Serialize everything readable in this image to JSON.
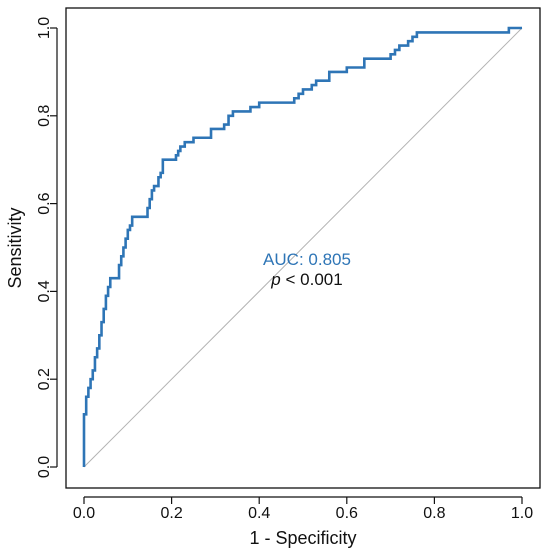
{
  "chart_data": {
    "type": "line",
    "xlabel": "1 - Specificity",
    "ylabel": "Sensitivity",
    "xlim": [
      0,
      1
    ],
    "ylim": [
      0,
      1
    ],
    "xticks": [
      "0.0",
      "0.2",
      "0.4",
      "0.6",
      "0.8",
      "1.0"
    ],
    "yticks": [
      "0.0",
      "0.2",
      "0.4",
      "0.6",
      "0.8",
      "1.0"
    ],
    "grid": false,
    "annotations": {
      "auc_text": "AUC: 0.805",
      "p_symbol": "p",
      "p_rest": " < 0.001"
    },
    "colors": {
      "roc": "#2e75b6",
      "reference": "#b3b3b3",
      "axis": "#111111"
    },
    "series": [
      {
        "x": [
          0,
          0,
          0.005,
          0.005,
          0.01,
          0.01,
          0.015,
          0.015,
          0.02,
          0.02,
          0.025,
          0.025,
          0.03,
          0.03,
          0.035,
          0.035,
          0.04,
          0.04,
          0.045,
          0.045,
          0.05,
          0.05,
          0.055,
          0.055,
          0.06,
          0.06,
          0.08,
          0.08,
          0.085,
          0.085,
          0.09,
          0.09,
          0.095,
          0.095,
          0.1,
          0.1,
          0.105,
          0.105,
          0.11,
          0.11,
          0.145,
          0.145,
          0.15,
          0.15,
          0.155,
          0.155,
          0.16,
          0.16,
          0.17,
          0.17,
          0.175,
          0.175,
          0.18,
          0.18,
          0.21,
          0.21,
          0.215,
          0.215,
          0.22,
          0.22,
          0.23,
          0.23,
          0.25,
          0.25,
          0.29,
          0.29,
          0.32,
          0.32,
          0.33,
          0.33,
          0.34,
          0.34,
          0.38,
          0.38,
          0.4,
          0.4,
          0.48,
          0.48,
          0.49,
          0.49,
          0.5,
          0.5,
          0.52,
          0.52,
          0.53,
          0.53,
          0.56,
          0.56,
          0.6,
          0.6,
          0.64,
          0.64,
          0.7,
          0.7,
          0.71,
          0.71,
          0.72,
          0.72,
          0.74,
          0.74,
          0.75,
          0.75,
          0.76,
          0.76,
          0.97,
          0.97,
          0.98,
          1.0
        ],
        "y": [
          0,
          0.12,
          0.12,
          0.16,
          0.16,
          0.18,
          0.18,
          0.2,
          0.2,
          0.22,
          0.22,
          0.25,
          0.25,
          0.27,
          0.27,
          0.3,
          0.3,
          0.33,
          0.33,
          0.36,
          0.36,
          0.39,
          0.39,
          0.41,
          0.41,
          0.43,
          0.43,
          0.46,
          0.46,
          0.48,
          0.48,
          0.5,
          0.5,
          0.52,
          0.52,
          0.54,
          0.54,
          0.55,
          0.55,
          0.57,
          0.57,
          0.59,
          0.59,
          0.61,
          0.61,
          0.63,
          0.63,
          0.64,
          0.64,
          0.66,
          0.66,
          0.67,
          0.67,
          0.7,
          0.7,
          0.71,
          0.71,
          0.72,
          0.72,
          0.73,
          0.73,
          0.74,
          0.74,
          0.75,
          0.75,
          0.77,
          0.77,
          0.78,
          0.78,
          0.8,
          0.8,
          0.81,
          0.81,
          0.82,
          0.82,
          0.83,
          0.83,
          0.84,
          0.84,
          0.85,
          0.85,
          0.86,
          0.86,
          0.87,
          0.87,
          0.88,
          0.88,
          0.9,
          0.9,
          0.91,
          0.91,
          0.93,
          0.93,
          0.94,
          0.94,
          0.95,
          0.95,
          0.96,
          0.96,
          0.97,
          0.97,
          0.98,
          0.98,
          0.99,
          0.99,
          1.0,
          1.0,
          1.0
        ]
      }
    ]
  }
}
